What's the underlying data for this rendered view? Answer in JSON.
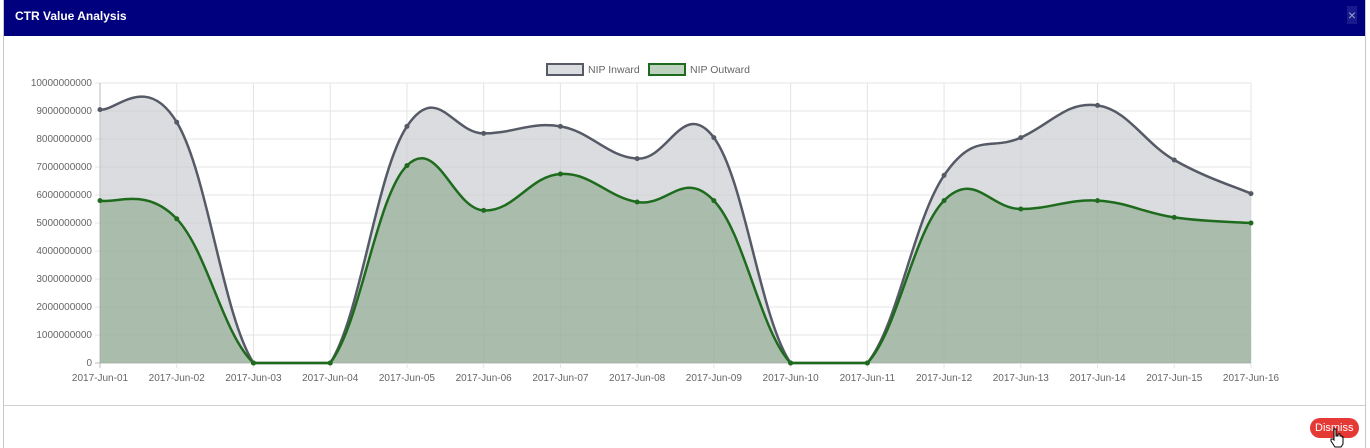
{
  "window": {
    "title": "CTR Value Analysis",
    "close_label": "×"
  },
  "footer": {
    "dismiss_label": "Dismiss"
  },
  "colors": {
    "header": "#00007f",
    "inward_line": "#555a66",
    "inward_fill": "rgba(200,202,206,0.65)",
    "outward_line": "#1e6b1e",
    "outward_fill": "rgba(110,150,110,0.45)",
    "dismiss": "#e53935"
  },
  "chart_data": {
    "type": "area",
    "title": "",
    "xlabel": "",
    "ylabel": "",
    "legend_position": "top",
    "grid": true,
    "ylim": [
      0,
      10000000000
    ],
    "yticks": [
      0,
      1000000000,
      2000000000,
      3000000000,
      4000000000,
      5000000000,
      6000000000,
      7000000000,
      8000000000,
      9000000000,
      10000000000
    ],
    "x": [
      "2017-Jun-01",
      "2017-Jun-02",
      "2017-Jun-03",
      "2017-Jun-04",
      "2017-Jun-05",
      "2017-Jun-06",
      "2017-Jun-07",
      "2017-Jun-08",
      "2017-Jun-09",
      "2017-Jun-10",
      "2017-Jun-11",
      "2017-Jun-12",
      "2017-Jun-13",
      "2017-Jun-14",
      "2017-Jun-15",
      "2017-Jun-16"
    ],
    "series": [
      {
        "name": "NIP Inward",
        "values": [
          9050000000,
          8600000000,
          0,
          0,
          8450000000,
          8200000000,
          8450000000,
          7300000000,
          8050000000,
          0,
          0,
          6700000000,
          8050000000,
          9200000000,
          7250000000,
          6050000000
        ]
      },
      {
        "name": "NIP Outward",
        "values": [
          5800000000,
          5150000000,
          0,
          0,
          7050000000,
          5450000000,
          6750000000,
          5750000000,
          5800000000,
          0,
          0,
          5800000000,
          5500000000,
          5800000000,
          5200000000,
          5000000000
        ]
      }
    ]
  }
}
